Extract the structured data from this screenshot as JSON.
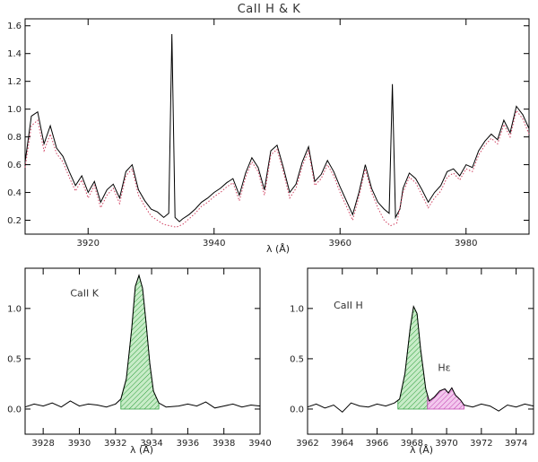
{
  "chart_data": [
    {
      "type": "line",
      "title": "CaII  H & K",
      "xlabel": "λ (Å)",
      "ylabel": "",
      "xlim": [
        3910,
        3990
      ],
      "ylim": [
        0.1,
        1.65
      ],
      "xticks": [
        3920,
        3940,
        3960,
        3980
      ],
      "yticks": [
        0.2,
        0.4,
        0.6,
        0.8,
        1.0,
        1.2,
        1.4,
        1.6
      ],
      "grid": false,
      "series": [
        {
          "color": "#000000",
          "style": "solid",
          "x": [
            3910,
            3911,
            3912,
            3913,
            3914,
            3915,
            3916,
            3917,
            3918,
            3919,
            3920,
            3921,
            3922,
            3923,
            3924,
            3925,
            3926,
            3927,
            3928,
            3929,
            3930,
            3931,
            3932,
            3932.8,
            3933.3,
            3933.8,
            3934.5,
            3935,
            3936,
            3937,
            3938,
            3939,
            3940,
            3941,
            3942,
            3943,
            3944,
            3945,
            3946,
            3947,
            3948,
            3949,
            3950,
            3951,
            3952,
            3953,
            3954,
            3955,
            3956,
            3957,
            3958,
            3959,
            3960,
            3961,
            3962,
            3963,
            3964,
            3965,
            3966,
            3967,
            3967.8,
            3968.3,
            3968.8,
            3969.5,
            3970,
            3971,
            3972,
            3973,
            3974,
            3975,
            3976,
            3977,
            3978,
            3979,
            3980,
            3981,
            3982,
            3983,
            3984,
            3985,
            3986,
            3987,
            3988,
            3989,
            3990
          ],
          "y": [
            0.62,
            0.95,
            0.98,
            0.75,
            0.88,
            0.72,
            0.66,
            0.55,
            0.45,
            0.52,
            0.4,
            0.48,
            0.33,
            0.42,
            0.46,
            0.36,
            0.55,
            0.6,
            0.42,
            0.34,
            0.28,
            0.26,
            0.22,
            0.25,
            1.54,
            0.22,
            0.19,
            0.21,
            0.24,
            0.28,
            0.33,
            0.36,
            0.4,
            0.43,
            0.47,
            0.5,
            0.38,
            0.54,
            0.65,
            0.58,
            0.42,
            0.7,
            0.74,
            0.58,
            0.4,
            0.46,
            0.62,
            0.73,
            0.48,
            0.53,
            0.63,
            0.55,
            0.44,
            0.34,
            0.24,
            0.4,
            0.6,
            0.43,
            0.33,
            0.28,
            0.25,
            1.18,
            0.22,
            0.28,
            0.43,
            0.54,
            0.5,
            0.42,
            0.33,
            0.4,
            0.45,
            0.55,
            0.57,
            0.52,
            0.6,
            0.58,
            0.7,
            0.77,
            0.82,
            0.78,
            0.92,
            0.83,
            1.02,
            0.96,
            0.86
          ]
        },
        {
          "color": "#d04060",
          "style": "dotted",
          "x": [
            3910,
            3911,
            3912,
            3913,
            3914,
            3915,
            3916,
            3917,
            3918,
            3919,
            3920,
            3921,
            3922,
            3923,
            3924,
            3925,
            3926,
            3927,
            3928,
            3929,
            3930,
            3931,
            3932,
            3933,
            3934,
            3935,
            3936,
            3937,
            3938,
            3939,
            3940,
            3941,
            3942,
            3943,
            3944,
            3945,
            3946,
            3947,
            3948,
            3949,
            3950,
            3951,
            3952,
            3953,
            3954,
            3955,
            3956,
            3957,
            3958,
            3959,
            3960,
            3961,
            3962,
            3963,
            3964,
            3965,
            3966,
            3967,
            3968,
            3969,
            3970,
            3971,
            3972,
            3973,
            3974,
            3975,
            3976,
            3977,
            3978,
            3979,
            3980,
            3981,
            3982,
            3983,
            3984,
            3985,
            3986,
            3987,
            3988,
            3989,
            3990
          ],
          "y": [
            0.58,
            0.88,
            0.92,
            0.7,
            0.82,
            0.68,
            0.62,
            0.51,
            0.41,
            0.49,
            0.36,
            0.45,
            0.29,
            0.38,
            0.43,
            0.32,
            0.52,
            0.57,
            0.38,
            0.3,
            0.23,
            0.2,
            0.17,
            0.16,
            0.15,
            0.17,
            0.21,
            0.25,
            0.3,
            0.33,
            0.37,
            0.4,
            0.44,
            0.47,
            0.34,
            0.51,
            0.62,
            0.55,
            0.38,
            0.67,
            0.71,
            0.55,
            0.36,
            0.43,
            0.59,
            0.7,
            0.45,
            0.5,
            0.6,
            0.52,
            0.4,
            0.3,
            0.2,
            0.37,
            0.57,
            0.4,
            0.29,
            0.2,
            0.16,
            0.18,
            0.4,
            0.51,
            0.47,
            0.38,
            0.29,
            0.36,
            0.41,
            0.51,
            0.54,
            0.49,
            0.57,
            0.55,
            0.67,
            0.74,
            0.79,
            0.75,
            0.89,
            0.8,
            0.99,
            0.93,
            0.82
          ]
        }
      ]
    },
    {
      "type": "area",
      "title": "",
      "xlabel": "λ (Å)",
      "ylabel": "",
      "xlim": [
        3927,
        3940
      ],
      "ylim": [
        -0.25,
        1.4
      ],
      "xticks": [
        3928,
        3930,
        3932,
        3934,
        3936,
        3938,
        3940
      ],
      "yticks": [
        0.0,
        0.5,
        1.0
      ],
      "grid": false,
      "annotations": [
        {
          "text": "CaII K",
          "x": 3929.5,
          "y": 1.12
        }
      ],
      "series": [
        {
          "color": "#000000",
          "x": [
            3927,
            3927.5,
            3928,
            3928.5,
            3929,
            3929.5,
            3930,
            3930.5,
            3931,
            3931.5,
            3932,
            3932.3,
            3932.6,
            3932.9,
            3933.1,
            3933.3,
            3933.5,
            3933.7,
            3933.9,
            3934.1,
            3934.4,
            3934.8,
            3935.5,
            3936,
            3936.5,
            3937,
            3937.5,
            3938,
            3938.5,
            3939,
            3939.5,
            3940
          ],
          "y": [
            0.02,
            0.05,
            0.03,
            0.06,
            0.02,
            0.08,
            0.03,
            0.05,
            0.04,
            0.02,
            0.05,
            0.1,
            0.3,
            0.8,
            1.22,
            1.33,
            1.2,
            0.85,
            0.45,
            0.18,
            0.06,
            0.02,
            0.03,
            0.05,
            0.03,
            0.07,
            0.01,
            0.03,
            0.05,
            0.02,
            0.04,
            0.03
          ]
        }
      ],
      "shaded_regions": [
        {
          "color": "#2e9e3c",
          "fill": "#c8ecc8",
          "x_range": [
            3932.3,
            3934.4
          ]
        }
      ]
    },
    {
      "type": "area",
      "title": "",
      "xlabel": "λ (Å)",
      "ylabel": "",
      "xlim": [
        3962,
        3975
      ],
      "ylim": [
        -0.25,
        1.4
      ],
      "xticks": [
        3962,
        3964,
        3966,
        3968,
        3970,
        3972,
        3974
      ],
      "yticks": [
        0.0,
        0.5,
        1.0
      ],
      "grid": false,
      "annotations": [
        {
          "text": "CaII H",
          "x": 3963.5,
          "y": 1.0
        },
        {
          "text": "Hε",
          "x": 3969.5,
          "y": 0.38
        }
      ],
      "series": [
        {
          "color": "#000000",
          "x": [
            3962,
            3962.5,
            3963,
            3963.5,
            3964,
            3964.5,
            3965,
            3965.5,
            3966,
            3966.5,
            3967,
            3967.3,
            3967.6,
            3967.9,
            3968.1,
            3968.3,
            3968.5,
            3968.8,
            3969,
            3969.3,
            3969.6,
            3969.9,
            3970.1,
            3970.3,
            3970.5,
            3970.8,
            3971,
            3971.5,
            3972,
            3972.5,
            3973,
            3973.5,
            3974,
            3974.5,
            3975
          ],
          "y": [
            0.02,
            0.05,
            0.01,
            0.04,
            -0.03,
            0.06,
            0.03,
            0.02,
            0.05,
            0.03,
            0.06,
            0.1,
            0.35,
            0.8,
            1.02,
            0.95,
            0.6,
            0.2,
            0.08,
            0.12,
            0.18,
            0.2,
            0.16,
            0.21,
            0.14,
            0.09,
            0.04,
            0.02,
            0.05,
            0.03,
            -0.02,
            0.04,
            0.02,
            0.05,
            0.03
          ]
        }
      ],
      "shaded_regions": [
        {
          "color": "#2e9e3c",
          "fill": "#c8ecc8",
          "x_range": [
            3967.2,
            3968.9
          ]
        },
        {
          "color": "#c040b0",
          "fill": "#f3c8ee",
          "x_range": [
            3968.9,
            3971.0
          ]
        }
      ]
    }
  ]
}
